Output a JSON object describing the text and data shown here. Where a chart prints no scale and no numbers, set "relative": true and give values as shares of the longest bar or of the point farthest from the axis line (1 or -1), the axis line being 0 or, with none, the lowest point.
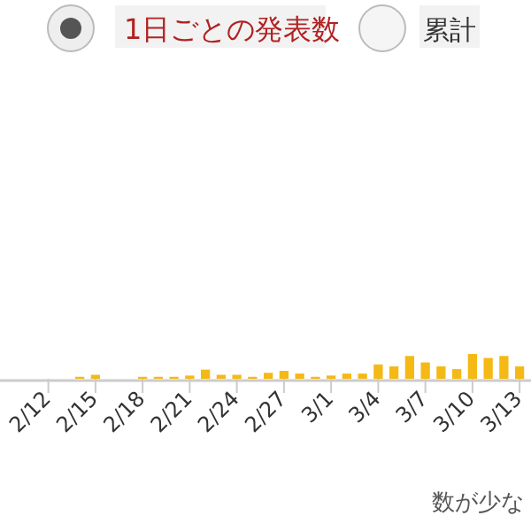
{
  "chart_data": {
    "type": "bar",
    "relative": true,
    "color": "#f5b915",
    "categories": [
      null,
      "2/12",
      null,
      null,
      "2/15",
      null,
      null,
      "2/18",
      null,
      null,
      "2/21",
      null,
      null,
      "2/24",
      null,
      null,
      "2/27",
      null,
      null,
      "3/1",
      null,
      null,
      "3/4",
      null,
      null,
      "3/7",
      null,
      null,
      "3/10",
      null,
      null,
      "3/13"
    ],
    "values": [
      0,
      0,
      0,
      0.08,
      0.16,
      0,
      0,
      0.08,
      0.08,
      0.08,
      0.13,
      0.37,
      0.16,
      0.16,
      0.08,
      0.24,
      0.32,
      0.21,
      0.08,
      0.13,
      0.21,
      0.21,
      0.58,
      0.5,
      0.92,
      0.66,
      0.5,
      0.39,
      1,
      0.84,
      0.92,
      0.5
    ],
    "annotations": [
      "1日ごとの発表数",
      "累計",
      "数が少な"
    ]
  }
}
